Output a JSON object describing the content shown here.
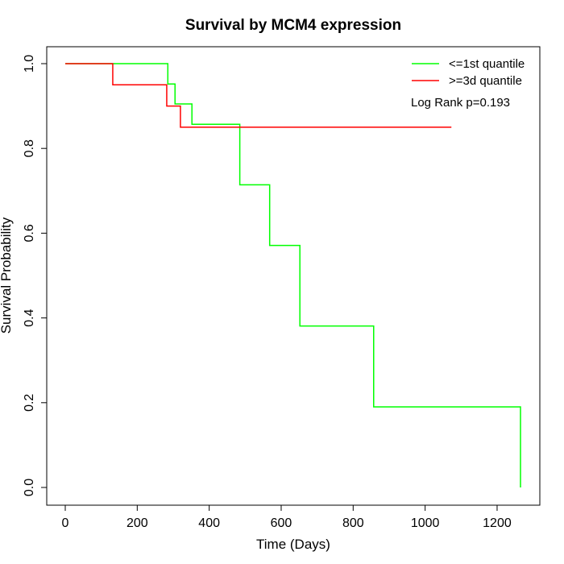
{
  "chart_data": {
    "type": "line",
    "title": "Survival by MCM4 expression",
    "xlabel": "Time (Days)",
    "ylabel": "Survival Probability",
    "xlim": [
      0,
      1265
    ],
    "ylim": [
      0,
      1
    ],
    "x_ticks": [
      0,
      200,
      400,
      600,
      800,
      1000,
      1200
    ],
    "y_ticks": [
      0.0,
      0.2,
      0.4,
      0.6,
      0.8,
      1.0
    ],
    "x_tick_labels": [
      "0",
      "200",
      "400",
      "600",
      "800",
      "1000",
      "1200"
    ],
    "y_tick_labels": [
      "0.0",
      "0.2",
      "0.4",
      "0.6",
      "0.8",
      "1.0"
    ],
    "legend_position": "top-right",
    "annotation": "Log Rank p=0.193",
    "grid": false,
    "series": [
      {
        "name": "<=1st quantile",
        "color": "#00ff00",
        "step": true,
        "points": [
          {
            "x": 0,
            "y": 1.0
          },
          {
            "x": 285,
            "y": 0.952
          },
          {
            "x": 305,
            "y": 0.905
          },
          {
            "x": 352,
            "y": 0.857
          },
          {
            "x": 485,
            "y": 0.714
          },
          {
            "x": 568,
            "y": 0.571
          },
          {
            "x": 652,
            "y": 0.381
          },
          {
            "x": 857,
            "y": 0.19
          },
          {
            "x": 1265,
            "y": 0.0
          }
        ]
      },
      {
        "name": ">=3d quantile",
        "color": "#ff0000",
        "step": true,
        "end_x": 1073,
        "points": [
          {
            "x": 0,
            "y": 1.0
          },
          {
            "x": 132,
            "y": 0.95
          },
          {
            "x": 282,
            "y": 0.9
          },
          {
            "x": 320,
            "y": 0.85
          }
        ]
      }
    ]
  }
}
